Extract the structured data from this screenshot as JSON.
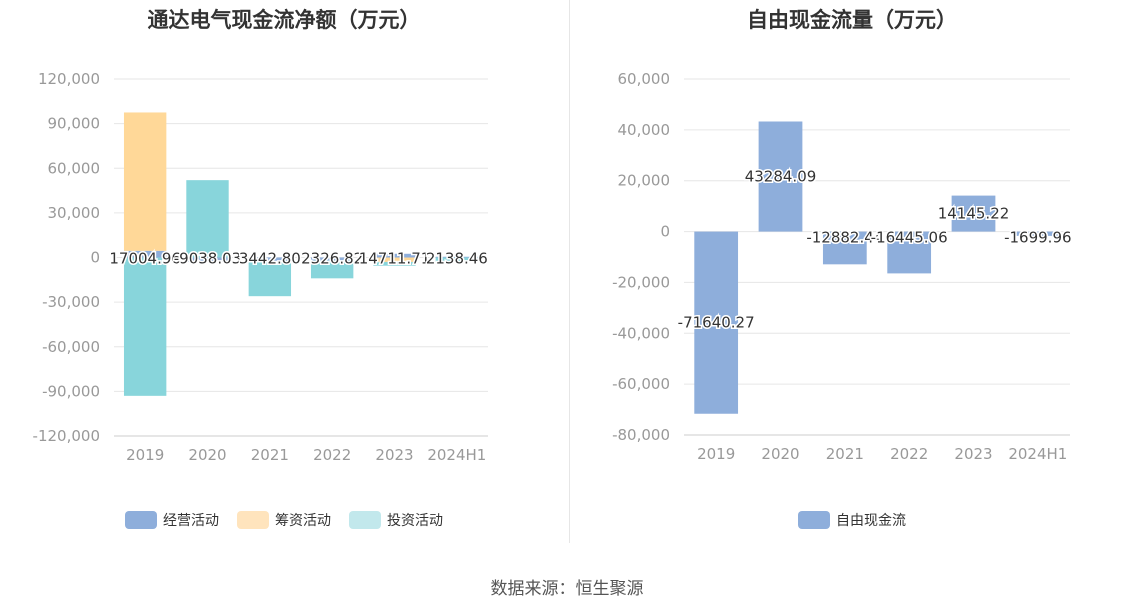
{
  "source_label": "数据来源：恒生聚源",
  "colors": {
    "operating": "#8eaedb",
    "financing": "#ffd898",
    "investing": "#88d5db",
    "legend_financing": "#ffe4bd",
    "legend_investing": "#c2e8ec",
    "free_cash_flow": "#8eaedb",
    "grid": "#e6e6e6",
    "axis_text": "#999999"
  },
  "chart_data": [
    {
      "type": "bar",
      "stacked": true,
      "title": "通达电气现金流净额（万元）",
      "categories": [
        "2019",
        "2020",
        "2021",
        "2022",
        "2023",
        "2024H1"
      ],
      "ylim": [
        -120000,
        120000
      ],
      "yticks": [
        120000,
        90000,
        60000,
        30000,
        0,
        -30000,
        -60000,
        -90000,
        -120000
      ],
      "ytick_labels": [
        "120,000",
        "90,000",
        "60,000",
        "30,000",
        "0",
        "-30,000",
        "-60,000",
        "-90,000",
        "-120,000"
      ],
      "grid": true,
      "legend_position": "bottom",
      "series": [
        {
          "name": "经营活动",
          "color_key": "operating",
          "values": [
            4500,
            -3000,
            -3000,
            -2000,
            2500,
            500
          ]
        },
        {
          "name": "筹资活动",
          "color_key": "financing",
          "values": [
            93000,
            0,
            0,
            0,
            -3000,
            0
          ]
        },
        {
          "name": "投资活动",
          "color_key": "investing",
          "values": [
            -93000,
            52000,
            -23000,
            -12000,
            -2500,
            -3000
          ]
        }
      ],
      "data_labels": [
        "17004.96",
        "-9038.03",
        "3442.80",
        "2326.82",
        "14711.71",
        "2138.46"
      ]
    },
    {
      "type": "bar",
      "title": "自由现金流量（万元）",
      "categories": [
        "2019",
        "2020",
        "2021",
        "2022",
        "2023",
        "2024H1"
      ],
      "ylim": [
        -80000,
        60000
      ],
      "yticks": [
        60000,
        40000,
        20000,
        0,
        -20000,
        -40000,
        -60000,
        -80000
      ],
      "ytick_labels": [
        "60,000",
        "40,000",
        "20,000",
        "0",
        "-20,000",
        "-40,000",
        "-60,000",
        "-80,000"
      ],
      "grid": true,
      "legend_position": "bottom",
      "series": [
        {
          "name": "自由现金流",
          "color_key": "free_cash_flow",
          "values": [
            -71640.27,
            43284.09,
            -12882.44,
            -16445.06,
            14145.22,
            -1699.96
          ]
        }
      ],
      "data_labels": [
        "-71640.27",
        "43284.09",
        "-12882.44",
        "-16445.06",
        "14145.22",
        "-1699.96"
      ]
    }
  ]
}
